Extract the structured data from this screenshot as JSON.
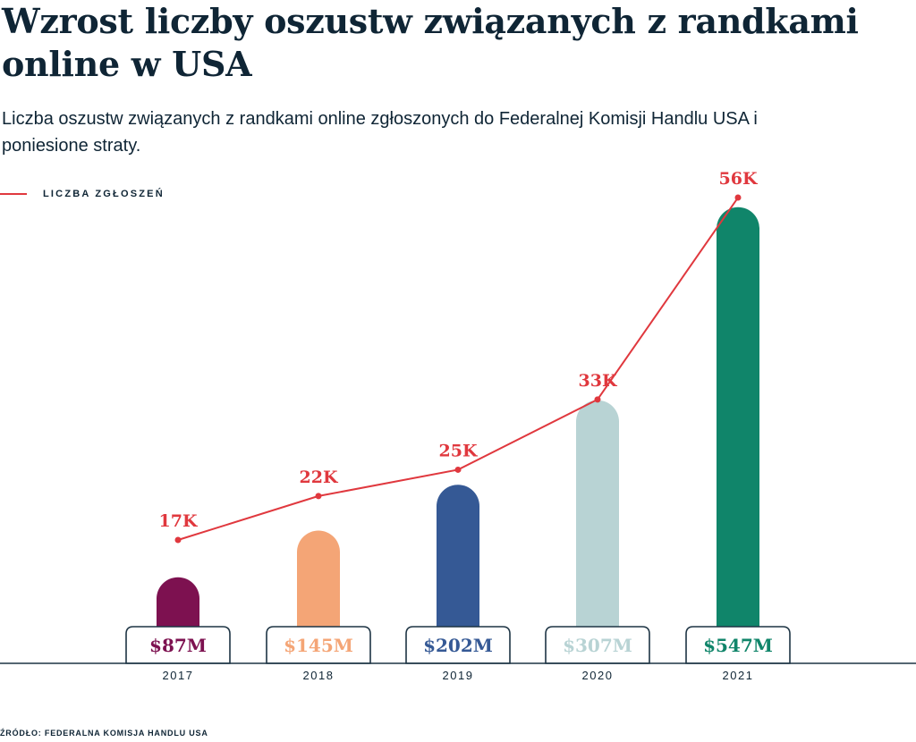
{
  "title": "Wzrost liczby oszustw związanych z randkami online w USA",
  "subtitle": "Liczba oszustw związanych z randkami online zgłoszonych do Federalnej Komisji Handlu USA i poniesione straty.",
  "legend": {
    "label": "LICZBA ZGŁOSZEŃ",
    "color": "#e0383e"
  },
  "source": "ŹRÓDŁO: FEDERALNA KOMISJA HANDLU USA",
  "chart_data": {
    "type": "bar+line",
    "categories": [
      "2017",
      "2018",
      "2019",
      "2020",
      "2021"
    ],
    "bars": {
      "values": [
        87,
        145,
        202,
        307,
        547
      ],
      "unit": "$M",
      "labels": [
        "$87M",
        "$145M",
        "$202M",
        "$307M",
        "$547M"
      ],
      "colors": [
        "#7d1150",
        "#f4a576",
        "#355995",
        "#b8d3d4",
        "#10856a"
      ]
    },
    "line": {
      "name": "LICZBA ZGŁOSZEŃ",
      "values": [
        17,
        22,
        25,
        33,
        56
      ],
      "unit": "K",
      "labels": [
        "17K",
        "22K",
        "25K",
        "33K",
        "56K"
      ],
      "color": "#e0383e"
    },
    "grid": false,
    "legend_position": "top-left"
  }
}
